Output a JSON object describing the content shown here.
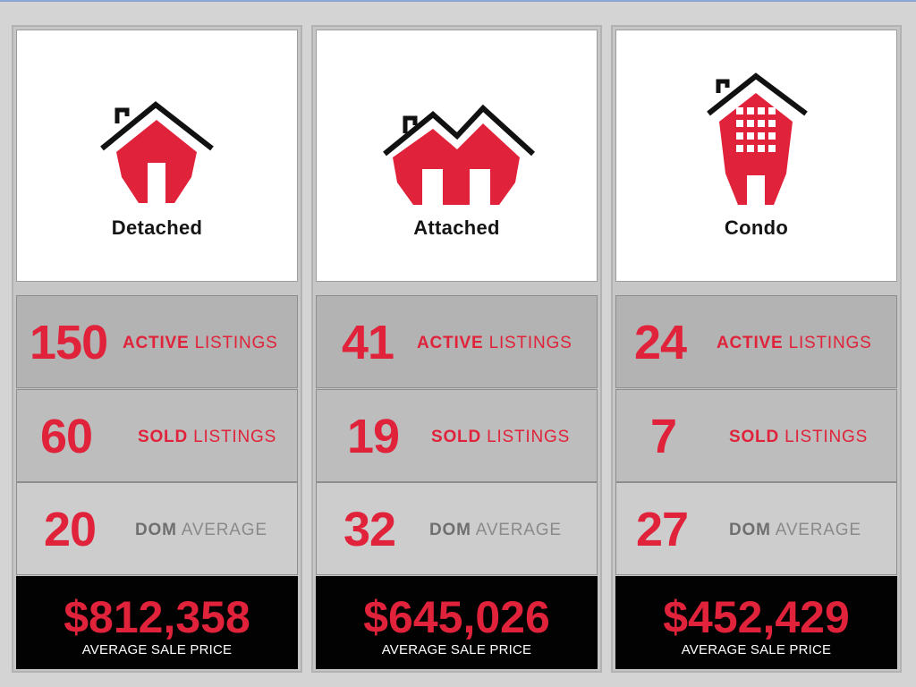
{
  "columns": [
    {
      "type": "Detached",
      "icon": "detached-house-icon",
      "active": {
        "value": "150",
        "key": "ACTIVE",
        "word": "LISTINGS"
      },
      "sold": {
        "value": "60",
        "key": "SOLD",
        "word": "LISTINGS"
      },
      "dom": {
        "value": "20",
        "key": "DOM",
        "word": "AVERAGE"
      },
      "price": {
        "value": "$812,358",
        "label": "AVERAGE SALE PRICE"
      }
    },
    {
      "type": "Attached",
      "icon": "attached-house-icon",
      "active": {
        "value": "41",
        "key": "ACTIVE",
        "word": "LISTINGS"
      },
      "sold": {
        "value": "19",
        "key": "SOLD",
        "word": "LISTINGS"
      },
      "dom": {
        "value": "32",
        "key": "DOM",
        "word": "AVERAGE"
      },
      "price": {
        "value": "$645,026",
        "label": "AVERAGE SALE PRICE"
      }
    },
    {
      "type": "Condo",
      "icon": "condo-building-icon",
      "active": {
        "value": "24",
        "key": "ACTIVE",
        "word": "LISTINGS"
      },
      "sold": {
        "value": "7",
        "key": "SOLD",
        "word": "LISTINGS"
      },
      "dom": {
        "value": "27",
        "key": "DOM",
        "word": "AVERAGE"
      },
      "price": {
        "value": "$452,429",
        "label": "AVERAGE SALE PRICE"
      }
    }
  ],
  "colors": {
    "accent_red": "#e0233a",
    "price_bg": "#020202",
    "muted_grey": "#8a8a8a"
  }
}
